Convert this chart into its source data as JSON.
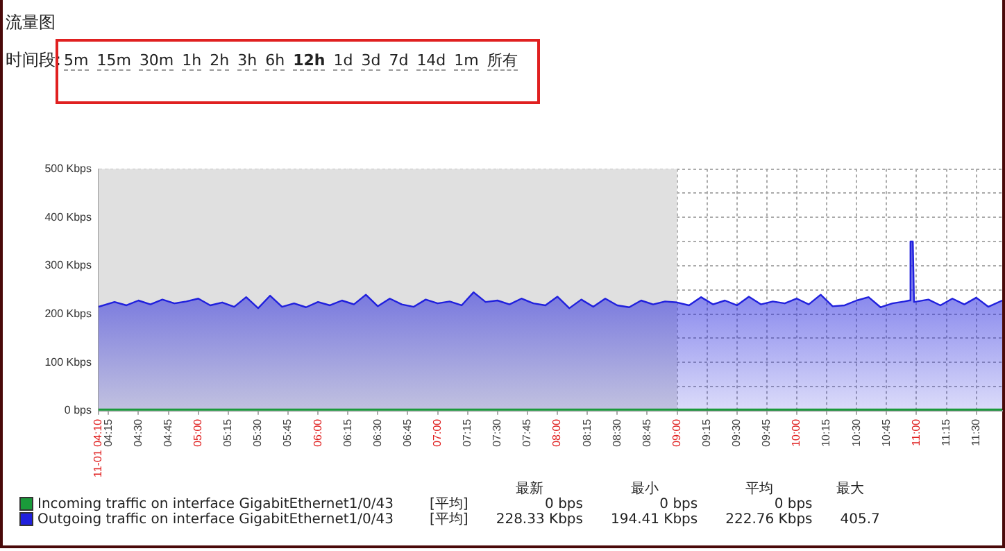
{
  "chart_data": {
    "type": "area",
    "title": "流量图",
    "subtitle": "时间段:",
    "xlim": [
      4.1667,
      11.7167
    ],
    "xticks": [
      {
        "value": 4.1667,
        "label": "11-01 04:10"
      },
      {
        "value": 4.25,
        "label": "04:15"
      },
      {
        "value": 4.5,
        "label": "04:30"
      },
      {
        "value": 4.75,
        "label": "04:45"
      },
      {
        "value": 5,
        "label": "05:00"
      },
      {
        "value": 5.25,
        "label": "05:15"
      },
      {
        "value": 5.5,
        "label": "05:30"
      },
      {
        "value": 5.75,
        "label": "05:45"
      },
      {
        "value": 6,
        "label": "06:00"
      },
      {
        "value": 6.25,
        "label": "06:15"
      },
      {
        "value": 6.5,
        "label": "06:30"
      },
      {
        "value": 6.75,
        "label": "06:45"
      },
      {
        "value": 7,
        "label": "07:00"
      },
      {
        "value": 7.25,
        "label": "07:15"
      },
      {
        "value": 7.5,
        "label": "07:30"
      },
      {
        "value": 7.75,
        "label": "07:45"
      },
      {
        "value": 8,
        "label": "08:00"
      },
      {
        "value": 8.25,
        "label": "08:15"
      },
      {
        "value": 8.5,
        "label": "08:30"
      },
      {
        "value": 8.75,
        "label": "08:45"
      },
      {
        "value": 9,
        "label": "09:00"
      },
      {
        "value": 9.25,
        "label": "09:15"
      },
      {
        "value": 9.5,
        "label": "09:30"
      },
      {
        "value": 9.75,
        "label": "09:45"
      },
      {
        "value": 10,
        "label": "10:00"
      },
      {
        "value": 10.25,
        "label": "10:15"
      },
      {
        "value": 10.5,
        "label": "10:30"
      },
      {
        "value": 10.75,
        "label": "10:45"
      },
      {
        "value": 11,
        "label": "11:00"
      },
      {
        "value": 11.25,
        "label": "11:15"
      },
      {
        "value": 11.5,
        "label": "11:30"
      }
    ],
    "ylim": [
      0,
      500
    ],
    "yticks": [
      {
        "value": 0,
        "label": "0 bps"
      },
      {
        "value": 50,
        "label": null
      },
      {
        "value": 100,
        "label": "100 Kbps"
      },
      {
        "value": 150,
        "label": null
      },
      {
        "value": 200,
        "label": "200 Kbps"
      },
      {
        "value": 250,
        "label": null
      },
      {
        "value": 300,
        "label": "300 Kbps"
      },
      {
        "value": 350,
        "label": null
      },
      {
        "value": 400,
        "label": "400 Kbps"
      },
      {
        "value": 450,
        "label": null
      },
      {
        "value": 500,
        "label": "500 Kbps"
      }
    ],
    "grid": true,
    "legend": "bottom",
    "bands": [
      {
        "axis": "x",
        "from": 4.1667,
        "to": 9,
        "color": "#e0e0e0"
      }
    ],
    "series": [
      {
        "name": "Incoming traffic on interface GigabitEthernet1/0/43",
        "type": "line",
        "color": "#1a9a3a",
        "x": [
          4.1667,
          11.7167
        ],
        "values": [
          0,
          0
        ]
      },
      {
        "name": "Outgoing traffic on interface GigabitEthernet1/0/43",
        "color": "#2020dd",
        "x": [
          4.1667,
          4.3,
          4.4,
          4.5,
          4.6,
          4.7,
          4.8,
          4.9,
          5.0,
          5.1,
          5.2,
          5.3,
          5.4,
          5.5,
          5.6,
          5.7,
          5.8,
          5.9,
          6.0,
          6.1,
          6.2,
          6.3,
          6.4,
          6.5,
          6.6,
          6.7,
          6.8,
          6.9,
          7.0,
          7.1,
          7.2,
          7.3,
          7.4,
          7.5,
          7.6,
          7.7,
          7.8,
          7.9,
          8.0,
          8.1,
          8.2,
          8.3,
          8.4,
          8.5,
          8.6,
          8.7,
          8.8,
          8.9,
          9.0,
          9.1,
          9.2,
          9.3,
          9.4,
          9.5,
          9.6,
          9.7,
          9.8,
          9.9,
          10.0,
          10.1,
          10.2,
          10.3,
          10.4,
          10.5,
          10.6,
          10.7,
          10.8,
          10.9,
          10.94,
          10.95,
          10.97,
          10.98,
          11.1,
          11.2,
          11.3,
          11.4,
          11.5,
          11.6,
          11.7167
        ],
        "values": [
          215,
          225,
          218,
          228,
          220,
          230,
          222,
          226,
          232,
          218,
          224,
          215,
          235,
          212,
          238,
          215,
          222,
          214,
          225,
          218,
          228,
          220,
          240,
          216,
          232,
          220,
          215,
          230,
          222,
          226,
          218,
          245,
          225,
          228,
          220,
          232,
          222,
          218,
          236,
          212,
          230,
          215,
          232,
          218,
          214,
          228,
          220,
          226,
          224,
          218,
          235,
          220,
          228,
          218,
          236,
          220,
          226,
          222,
          232,
          220,
          240,
          216,
          218,
          228,
          235,
          214,
          222,
          226,
          228,
          350,
          350,
          225,
          230,
          218,
          232,
          220,
          234,
          215,
          228
        ]
      }
    ],
    "annotations": [
      "5m",
      "15m",
      "30m",
      "1h",
      "2h",
      "3h",
      "6h",
      "12h",
      "1d",
      "3d",
      "7d",
      "14d",
      "1m",
      "所有",
      "最新",
      "最小",
      "平均",
      "最大",
      "[平均]",
      "0 bps",
      "0 bps",
      "0 bps",
      "[平均]",
      "228.33 Kbps",
      "194.41 Kbps",
      "222.76 Kbps",
      "405.7"
    ]
  }
}
